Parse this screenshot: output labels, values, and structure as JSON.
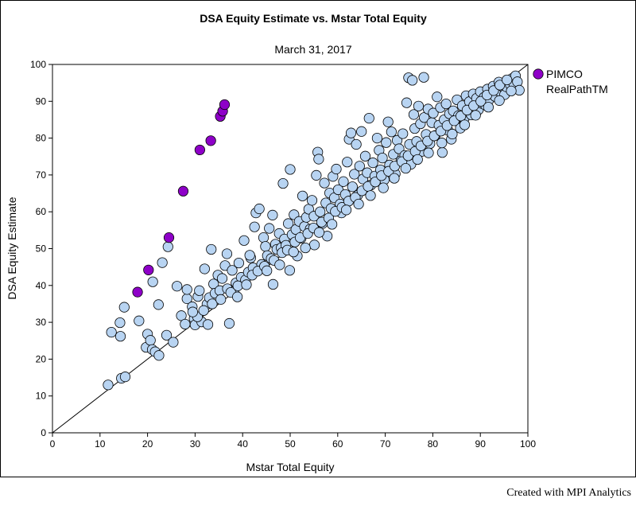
{
  "chart_data": {
    "type": "scatter",
    "title": "DSA Equity Estimate vs. Mstar Total Equity",
    "subtitle": "March 31, 2017",
    "xlabel": "Mstar Total Equity",
    "ylabel": "DSA Equity Estimate",
    "xlim": [
      0,
      100
    ],
    "ylim": [
      0,
      100
    ],
    "xticks": [
      0,
      10,
      20,
      30,
      40,
      50,
      60,
      70,
      80,
      90,
      100
    ],
    "yticks": [
      0,
      10,
      20,
      30,
      40,
      50,
      60,
      70,
      80,
      90,
      100
    ],
    "reference_line": "y = x",
    "grid": false,
    "legend_position": "right",
    "colors": {
      "highlight": "#8e00c8",
      "others": "#b8d4f2",
      "marker_edge": "#000000"
    },
    "series": [
      {
        "name": "PIMCO RealPathTM",
        "legend_lines": [
          "PIMCO",
          "RealPathTM"
        ],
        "color": "#8e00c8",
        "points": [
          [
            17.9,
            38.2
          ],
          [
            20.2,
            44.2
          ],
          [
            24.5,
            53.0
          ],
          [
            27.5,
            65.6
          ],
          [
            31.0,
            76.8
          ],
          [
            33.3,
            79.3
          ],
          [
            35.3,
            85.9
          ],
          [
            35.8,
            87.3
          ],
          [
            36.2,
            89.1
          ]
        ]
      },
      {
        "color": "#b8d4f2",
        "points": [
          [
            11.7,
            13.0
          ],
          [
            14.5,
            14.8
          ],
          [
            15.3,
            15.2
          ],
          [
            12.4,
            27.3
          ],
          [
            14.2,
            29.9
          ],
          [
            14.3,
            26.2
          ],
          [
            15.1,
            34.1
          ],
          [
            18.2,
            30.4
          ],
          [
            19.7,
            23.2
          ],
          [
            20.0,
            26.8
          ],
          [
            20.6,
            25.1
          ],
          [
            21.0,
            22.6
          ],
          [
            21.6,
            22.0
          ],
          [
            22.4,
            21.0
          ],
          [
            21.1,
            41.0
          ],
          [
            22.3,
            34.8
          ],
          [
            23.1,
            46.2
          ],
          [
            24.0,
            26.5
          ],
          [
            24.3,
            50.5
          ],
          [
            25.4,
            24.6
          ],
          [
            26.2,
            39.8
          ],
          [
            27.1,
            31.8
          ],
          [
            27.9,
            29.5
          ],
          [
            28.3,
            36.4
          ],
          [
            28.3,
            38.9
          ],
          [
            29.4,
            34.2
          ],
          [
            29.8,
            31.0
          ],
          [
            30.0,
            29.3
          ],
          [
            30.6,
            37.0
          ],
          [
            30.9,
            38.6
          ],
          [
            31.4,
            30.1
          ],
          [
            32.0,
            44.5
          ],
          [
            32.5,
            34.9
          ],
          [
            33.0,
            36.7
          ],
          [
            33.4,
            49.8
          ],
          [
            33.9,
            40.4
          ],
          [
            34.2,
            37.9
          ],
          [
            34.8,
            42.8
          ],
          [
            35.2,
            38.6
          ],
          [
            35.7,
            41.9
          ],
          [
            36.3,
            45.4
          ],
          [
            36.8,
            39.1
          ],
          [
            37.2,
            29.7
          ],
          [
            36.7,
            48.6
          ],
          [
            37.8,
            44.1
          ],
          [
            38.2,
            38.4
          ],
          [
            38.6,
            40.7
          ],
          [
            39.2,
            46.1
          ],
          [
            39.7,
            42.2
          ],
          [
            40.3,
            52.2
          ],
          [
            40.6,
            41.5
          ],
          [
            41.2,
            43.6
          ],
          [
            41.7,
            47.5
          ],
          [
            42.2,
            44.8
          ],
          [
            42.5,
            55.9
          ],
          [
            42.8,
            59.7
          ],
          [
            43.5,
            60.8
          ],
          [
            44.0,
            45.7
          ],
          [
            44.4,
            53.0
          ],
          [
            44.8,
            50.6
          ],
          [
            45.2,
            48.1
          ],
          [
            45.6,
            55.5
          ],
          [
            46.0,
            47.3
          ],
          [
            46.3,
            59.1
          ],
          [
            46.4,
            40.3
          ],
          [
            46.9,
            51.2
          ],
          [
            47.2,
            49.8
          ],
          [
            47.7,
            54.1
          ],
          [
            48.1,
            50.2
          ],
          [
            48.5,
            67.7
          ],
          [
            48.8,
            52.6
          ],
          [
            49.1,
            50.9
          ],
          [
            49.6,
            56.8
          ],
          [
            49.9,
            44.1
          ],
          [
            50.0,
            71.5
          ],
          [
            50.4,
            53.8
          ],
          [
            50.8,
            59.2
          ],
          [
            51.2,
            55.2
          ],
          [
            51.5,
            48.0
          ],
          [
            51.9,
            57.4
          ],
          [
            52.3,
            52.8
          ],
          [
            52.6,
            64.3
          ],
          [
            53.0,
            56.0
          ],
          [
            53.4,
            58.5
          ],
          [
            53.9,
            60.7
          ],
          [
            54.2,
            55.3
          ],
          [
            54.6,
            63.1
          ],
          [
            55.0,
            58.8
          ],
          [
            55.1,
            51.0
          ],
          [
            55.5,
            69.9
          ],
          [
            55.8,
            76.2
          ],
          [
            56.0,
            74.3
          ],
          [
            56.3,
            60.0
          ],
          [
            56.8,
            56.8
          ],
          [
            57.2,
            67.8
          ],
          [
            57.5,
            62.4
          ],
          [
            57.8,
            53.4
          ],
          [
            58.3,
            65.1
          ],
          [
            58.6,
            60.9
          ],
          [
            59.0,
            69.6
          ],
          [
            59.3,
            63.8
          ],
          [
            59.7,
            71.6
          ],
          [
            60.1,
            66.0
          ],
          [
            60.5,
            62.1
          ],
          [
            60.8,
            59.7
          ],
          [
            61.2,
            68.2
          ],
          [
            61.6,
            64.7
          ],
          [
            62.0,
            73.5
          ],
          [
            62.4,
            79.7
          ],
          [
            62.8,
            81.4
          ],
          [
            63.1,
            66.8
          ],
          [
            63.5,
            70.2
          ],
          [
            63.9,
            78.3
          ],
          [
            64.2,
            64.5
          ],
          [
            64.6,
            72.4
          ],
          [
            65.0,
            81.8
          ],
          [
            65.3,
            68.9
          ],
          [
            65.8,
            75.1
          ],
          [
            66.2,
            70.6
          ],
          [
            66.6,
            85.4
          ],
          [
            67.0,
            67.3
          ],
          [
            67.4,
            73.3
          ],
          [
            67.8,
            69.7
          ],
          [
            68.3,
            80.0
          ],
          [
            68.7,
            76.7
          ],
          [
            69.0,
            71.4
          ],
          [
            69.4,
            74.6
          ],
          [
            69.8,
            68.7
          ],
          [
            70.2,
            78.8
          ],
          [
            70.6,
            84.4
          ],
          [
            70.9,
            72.7
          ],
          [
            71.3,
            81.7
          ],
          [
            71.7,
            75.6
          ],
          [
            72.1,
            70.3
          ],
          [
            72.5,
            79.4
          ],
          [
            72.9,
            77.1
          ],
          [
            73.3,
            73.9
          ],
          [
            73.7,
            81.2
          ],
          [
            74.1,
            75.3
          ],
          [
            74.5,
            89.6
          ],
          [
            74.9,
            96.4
          ],
          [
            75.1,
            78.3
          ],
          [
            75.4,
            72.9
          ],
          [
            75.7,
            95.7
          ],
          [
            76.0,
            86.4
          ],
          [
            76.2,
            82.6
          ],
          [
            76.6,
            79.1
          ],
          [
            77.0,
            88.7
          ],
          [
            77.4,
            83.9
          ],
          [
            77.7,
            76.4
          ],
          [
            78.1,
            96.5
          ],
          [
            78.2,
            85.6
          ],
          [
            78.6,
            81.0
          ],
          [
            79.0,
            87.9
          ],
          [
            79.4,
            78.5
          ],
          [
            79.8,
            84.2
          ],
          [
            80.1,
            86.8
          ],
          [
            80.5,
            80.7
          ],
          [
            80.9,
            91.2
          ],
          [
            81.3,
            83.5
          ],
          [
            81.6,
            88.3
          ],
          [
            82.0,
            76.1
          ],
          [
            82.4,
            85.0
          ],
          [
            82.8,
            89.3
          ],
          [
            83.2,
            82.1
          ],
          [
            83.5,
            86.6
          ],
          [
            83.9,
            79.7
          ],
          [
            84.3,
            87.4
          ],
          [
            84.7,
            84.8
          ],
          [
            85.1,
            90.4
          ],
          [
            85.4,
            86.1
          ],
          [
            85.8,
            82.7
          ],
          [
            86.2,
            88.8
          ],
          [
            86.6,
            85.3
          ],
          [
            87.0,
            91.5
          ],
          [
            87.3,
            87.1
          ],
          [
            87.7,
            89.9
          ],
          [
            88.1,
            86.3
          ],
          [
            88.5,
            92.0
          ],
          [
            88.9,
            88.5
          ],
          [
            89.2,
            90.8
          ],
          [
            89.6,
            87.7
          ],
          [
            90.0,
            92.6
          ],
          [
            90.4,
            89.4
          ],
          [
            90.8,
            91.1
          ],
          [
            91.1,
            88.9
          ],
          [
            91.5,
            93.3
          ],
          [
            91.9,
            90.5
          ],
          [
            92.3,
            92.0
          ],
          [
            92.7,
            94.1
          ],
          [
            93.1,
            91.3
          ],
          [
            93.5,
            93.0
          ],
          [
            93.9,
            95.2
          ],
          [
            94.3,
            92.4
          ],
          [
            94.7,
            94.0
          ],
          [
            95.1,
            91.8
          ],
          [
            95.5,
            93.9
          ],
          [
            95.9,
            95.6
          ],
          [
            96.3,
            94.5
          ],
          [
            96.7,
            96.2
          ],
          [
            97.0,
            94.9
          ],
          [
            97.4,
            96.9
          ],
          [
            97.8,
            95.3
          ],
          [
            98.2,
            93.0
          ],
          [
            30.5,
            31.5
          ],
          [
            31.8,
            33.2
          ],
          [
            33.6,
            35.0
          ],
          [
            35.4,
            36.2
          ],
          [
            37.5,
            38.1
          ],
          [
            39.0,
            39.9
          ],
          [
            40.8,
            40.2
          ],
          [
            42.0,
            42.8
          ],
          [
            43.2,
            43.9
          ],
          [
            44.6,
            45.2
          ],
          [
            46.6,
            46.8
          ],
          [
            48.3,
            48.9
          ],
          [
            49.4,
            49.6
          ],
          [
            51.0,
            51.8
          ],
          [
            52.1,
            53.0
          ],
          [
            53.7,
            54.1
          ],
          [
            54.9,
            55.6
          ],
          [
            56.6,
            57.2
          ],
          [
            58.1,
            58.3
          ],
          [
            59.5,
            60.1
          ],
          [
            60.9,
            61.2
          ],
          [
            62.3,
            62.9
          ],
          [
            63.7,
            63.9
          ],
          [
            65.1,
            65.7
          ],
          [
            66.4,
            66.9
          ],
          [
            67.9,
            68.1
          ],
          [
            69.2,
            69.8
          ],
          [
            70.7,
            71.0
          ],
          [
            72.0,
            72.4
          ],
          [
            73.5,
            73.6
          ],
          [
            74.8,
            75.2
          ],
          [
            76.3,
            76.4
          ],
          [
            77.5,
            77.9
          ],
          [
            78.9,
            79.2
          ],
          [
            80.3,
            80.6
          ],
          [
            81.7,
            81.9
          ],
          [
            83.0,
            83.4
          ],
          [
            84.5,
            84.7
          ],
          [
            85.9,
            86.0
          ],
          [
            87.2,
            87.6
          ],
          [
            88.6,
            88.8
          ],
          [
            90.1,
            90.0
          ],
          [
            91.4,
            91.7
          ],
          [
            92.8,
            92.9
          ],
          [
            94.1,
            94.4
          ],
          [
            95.6,
            95.8
          ],
          [
            29.5,
            32.8
          ],
          [
            32.7,
            29.4
          ],
          [
            38.9,
            36.9
          ],
          [
            41.5,
            48.2
          ],
          [
            45.1,
            44.0
          ],
          [
            47.8,
            45.6
          ],
          [
            50.7,
            49.1
          ],
          [
            53.2,
            50.2
          ],
          [
            56.1,
            54.4
          ],
          [
            58.8,
            56.6
          ],
          [
            61.8,
            60.5
          ],
          [
            64.4,
            62.1
          ],
          [
            66.9,
            64.4
          ],
          [
            69.6,
            66.5
          ],
          [
            71.9,
            69.1
          ],
          [
            74.3,
            71.8
          ],
          [
            76.8,
            74.2
          ],
          [
            79.1,
            76.0
          ],
          [
            81.9,
            78.7
          ],
          [
            84.1,
            81.1
          ],
          [
            86.7,
            83.6
          ],
          [
            89.0,
            86.2
          ],
          [
            91.7,
            88.4
          ],
          [
            94.0,
            90.2
          ],
          [
            96.5,
            92.8
          ]
        ]
      }
    ],
    "credit": "Created with MPI Analytics"
  }
}
